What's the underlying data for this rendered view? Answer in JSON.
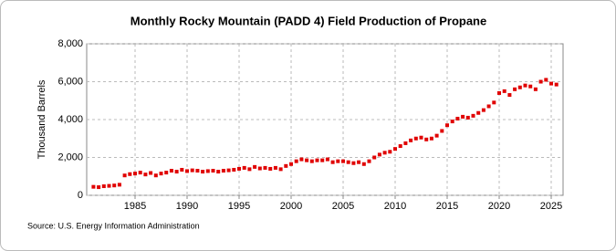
{
  "chart_data": {
    "type": "scatter",
    "title": "Monthly Rocky Mountain (PADD 4) Field Production of Propane",
    "y_label": "Thousand Barrels",
    "source": "Source: U.S. Energy Information Administration",
    "color": "#e00000",
    "grid": true,
    "xlim": [
      1980.35,
      2026.14
    ],
    "ylim": [
      0,
      8000
    ],
    "xticks": [
      1985,
      1990,
      1995,
      2000,
      2005,
      2010,
      2015,
      2020,
      2025
    ],
    "yticks": [
      0,
      {
        "value": 2000,
        "label": "2,000"
      },
      {
        "value": 4000,
        "label": "4,000"
      },
      {
        "value": 6000,
        "label": "6,000"
      },
      {
        "value": 8000,
        "label": "8,000"
      }
    ],
    "x": [
      1981.0,
      1981.5,
      1982.0,
      1982.5,
      1983.0,
      1983.5,
      1984.0,
      1984.5,
      1985.0,
      1985.5,
      1986.0,
      1986.5,
      1987.0,
      1987.5,
      1988.0,
      1988.5,
      1989.0,
      1989.5,
      1990.0,
      1990.5,
      1991.0,
      1991.5,
      1992.0,
      1992.5,
      1993.0,
      1993.5,
      1994.0,
      1994.5,
      1995.0,
      1995.5,
      1996.0,
      1996.5,
      1997.0,
      1997.5,
      1998.0,
      1998.5,
      1999.0,
      1999.5,
      2000.0,
      2000.5,
      2001.0,
      2001.5,
      2002.0,
      2002.5,
      2003.0,
      2003.5,
      2004.0,
      2004.5,
      2005.0,
      2005.5,
      2006.0,
      2006.5,
      2007.0,
      2007.5,
      2008.0,
      2008.5,
      2009.0,
      2009.5,
      2010.0,
      2010.5,
      2011.0,
      2011.5,
      2012.0,
      2012.5,
      2013.0,
      2013.5,
      2014.0,
      2014.5,
      2015.0,
      2015.5,
      2016.0,
      2016.5,
      2017.0,
      2017.5,
      2018.0,
      2018.5,
      2019.0,
      2019.5,
      2020.0,
      2020.5,
      2021.0,
      2021.5,
      2022.0,
      2022.5,
      2023.0,
      2023.5,
      2024.0,
      2024.5,
      2025.0,
      2025.5
    ],
    "values": [
      450,
      430,
      480,
      500,
      520,
      560,
      1050,
      1120,
      1150,
      1200,
      1100,
      1180,
      1050,
      1150,
      1200,
      1300,
      1250,
      1350,
      1280,
      1320,
      1300,
      1250,
      1280,
      1300,
      1250,
      1300,
      1320,
      1350,
      1400,
      1450,
      1380,
      1500,
      1420,
      1450,
      1400,
      1450,
      1380,
      1550,
      1650,
      1800,
      1900,
      1850,
      1800,
      1850,
      1850,
      1900,
      1750,
      1800,
      1800,
      1750,
      1700,
      1750,
      1650,
      1800,
      2000,
      2150,
      2250,
      2300,
      2450,
      2600,
      2750,
      2900,
      3000,
      3050,
      2950,
      3000,
      3150,
      3400,
      3700,
      3900,
      4050,
      4150,
      4100,
      4200,
      4350,
      4500,
      4700,
      4900,
      5400,
      5500,
      5300,
      5600,
      5700,
      5800,
      5750,
      5600,
      6000,
      6100,
      5900,
      5850
    ]
  }
}
